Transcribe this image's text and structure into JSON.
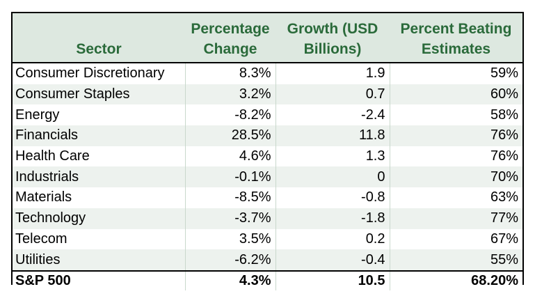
{
  "headers": {
    "sector": "Sector",
    "pct_change_1": "Percentage",
    "pct_change_2": "Change",
    "growth_1": "Growth (USD",
    "growth_2": "Billions)",
    "beating_1": "Percent Beating",
    "beating_2": "Estimates"
  },
  "rows": [
    {
      "sector": "Consumer Discretionary",
      "pct_change": "8.3%",
      "growth": "1.9",
      "beating": "59%"
    },
    {
      "sector": "Consumer Staples",
      "pct_change": "3.2%",
      "growth": "0.7",
      "beating": "60%"
    },
    {
      "sector": "Energy",
      "pct_change": "-8.2%",
      "growth": "-2.4",
      "beating": "58%"
    },
    {
      "sector": "Financials",
      "pct_change": "28.5%",
      "growth": "11.8",
      "beating": "76%"
    },
    {
      "sector": "Health Care",
      "pct_change": "4.6%",
      "growth": "1.3",
      "beating": "76%"
    },
    {
      "sector": "Industrials",
      "pct_change": "-0.1%",
      "growth": "0",
      "beating": "70%"
    },
    {
      "sector": "Materials",
      "pct_change": "-8.5%",
      "growth": "-0.8",
      "beating": "63%"
    },
    {
      "sector": "Technology",
      "pct_change": "-3.7%",
      "growth": "-1.8",
      "beating": "77%"
    },
    {
      "sector": "Telecom",
      "pct_change": "3.5%",
      "growth": "0.2",
      "beating": "67%"
    },
    {
      "sector": "Utilities",
      "pct_change": "-6.2%",
      "growth": "-0.4",
      "beating": "55%"
    }
  ],
  "total": {
    "sector": "S&P 500",
    "pct_change": "4.3%",
    "growth": "10.5",
    "beating": "68.20%"
  },
  "colors": {
    "header_text": "#2a6a3a",
    "header_bg": "#dde8e0",
    "row_shade": "#edf2ee"
  }
}
